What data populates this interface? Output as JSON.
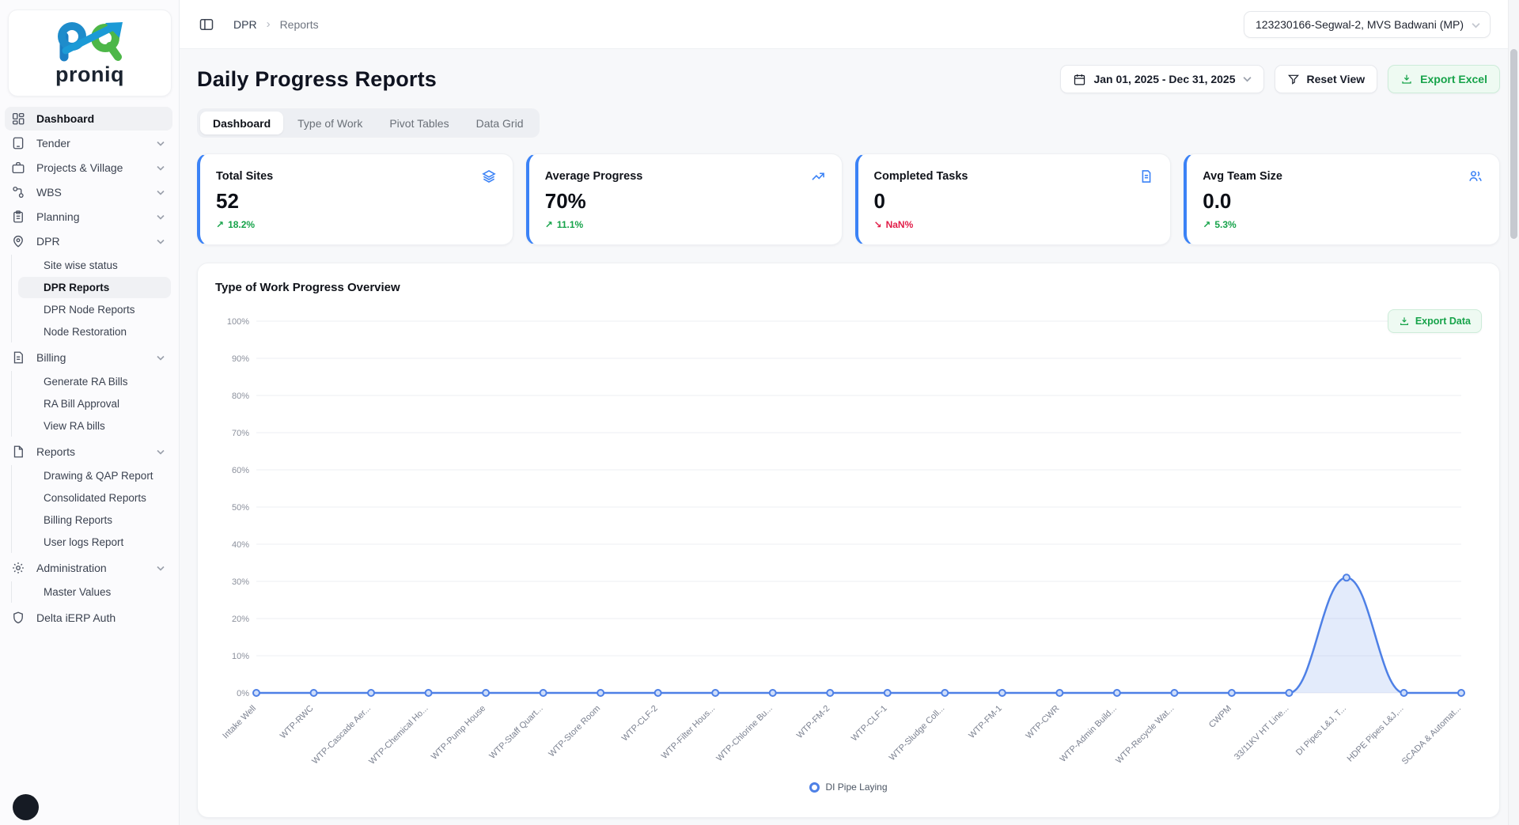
{
  "brand": {
    "name": "proniq"
  },
  "colors": {
    "accent_blue": "#3b82f6",
    "line_blue": "#4e80e6",
    "positive_green": "#16a34a",
    "negative_red": "#e11d48",
    "export_green": "#17a34a"
  },
  "icons": {
    "up_arrow": "↗",
    "down_arrow": "↘"
  },
  "sidebar": {
    "items": [
      {
        "label": "Dashboard"
      },
      {
        "label": "Tender"
      },
      {
        "label": "Projects & Village"
      },
      {
        "label": "WBS"
      },
      {
        "label": "Planning"
      },
      {
        "label": "DPR"
      },
      {
        "label": "Site wise status"
      },
      {
        "label": "DPR Reports"
      },
      {
        "label": "DPR Node Reports"
      },
      {
        "label": "Node Restoration"
      },
      {
        "label": "Billing"
      },
      {
        "label": "Generate RA Bills"
      },
      {
        "label": "RA Bill Approval"
      },
      {
        "label": "View RA bills"
      },
      {
        "label": "Reports"
      },
      {
        "label": "Drawing & QAP Report"
      },
      {
        "label": "Consolidated Reports"
      },
      {
        "label": "Billing Reports"
      },
      {
        "label": "User logs Report"
      },
      {
        "label": "Administration"
      },
      {
        "label": "Master Values"
      },
      {
        "label": "Delta iERP Auth"
      }
    ]
  },
  "topbar": {
    "breadcrumb": {
      "section": "DPR",
      "separator": "›",
      "page": "Reports"
    },
    "site_select": {
      "value": "123230166-Segwal-2, MVS Badwani (MP)"
    }
  },
  "page": {
    "title": "Daily Progress Reports"
  },
  "actions": {
    "date_range": "Jan 01, 2025 - Dec 31, 2025",
    "reset": "Reset View",
    "export_excel": "Export Excel"
  },
  "tabs": [
    {
      "label": "Dashboard",
      "active": true
    },
    {
      "label": "Type of Work",
      "active": false
    },
    {
      "label": "Pivot Tables",
      "active": false
    },
    {
      "label": "Data Grid",
      "active": false
    }
  ],
  "kpi_cards": [
    {
      "title": "Total Sites",
      "value": "52",
      "delta": "18.2%",
      "direction": "up"
    },
    {
      "title": "Average Progress",
      "value": "70%",
      "delta": "11.1%",
      "direction": "up"
    },
    {
      "title": "Completed Tasks",
      "value": "0",
      "delta": "NaN%",
      "direction": "down"
    },
    {
      "title": "Avg Team Size",
      "value": "0.0",
      "delta": "5.3%",
      "direction": "up"
    }
  ],
  "chart": {
    "export_label": "Export Data"
  },
  "chart_data": {
    "type": "area",
    "title": "Type of Work Progress Overview",
    "categories": [
      "Intake Well",
      "WTP-RWC",
      "WTP-Cascade Aer...",
      "WTP-Chemical Ho...",
      "WTP-Pump House",
      "WTP-Staff Quart...",
      "WTP-Store Room",
      "WTP-CLF-2",
      "WTP-Filter Hous...",
      "WTP-Chlorine Bu...",
      "WTP-FM-2",
      "WTP-CLF-1",
      "WTP-Sludge Coll...",
      "WTP-FM-1",
      "WTP-CWR",
      "WTP-Admin Build...",
      "WTP-Recycle Wat...",
      "CWPM",
      "33/11KV HT Line...",
      "DI Pipes L&J, T...",
      "HDPE Pipes L&J,...",
      "SCADA & Automat..."
    ],
    "series": [
      {
        "name": "DI Pipe Laying",
        "values": [
          0,
          0,
          0,
          0,
          0,
          0,
          0,
          0,
          0,
          0,
          0,
          0,
          0,
          0,
          0,
          0,
          0,
          0,
          0,
          31,
          0,
          0
        ]
      }
    ],
    "ylim": [
      0,
      100
    ],
    "y_tick_labels": [
      "0%",
      "10%",
      "20%",
      "30%",
      "40%",
      "50%",
      "60%",
      "70%",
      "80%",
      "90%",
      "100%"
    ],
    "grid": true,
    "legend_position": "bottom",
    "line_color": "#4e80e6",
    "fill_color": "rgba(78,128,230,0.16)"
  }
}
